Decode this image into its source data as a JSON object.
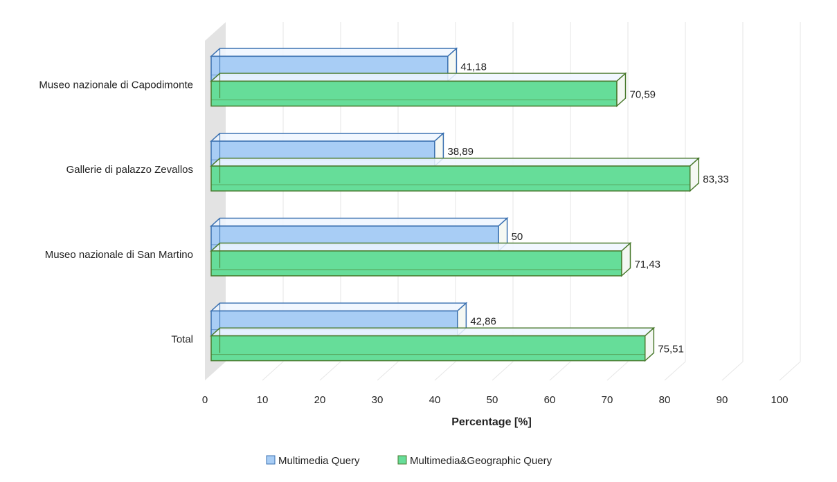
{
  "chart_data": {
    "type": "bar",
    "orientation": "horizontal",
    "style": "3d-clustered",
    "categories": [
      "Museo nazionale di Capodimonte",
      "Gallerie di palazzo Zevallos",
      "Museo nazionale di San Martino",
      "Total"
    ],
    "series": [
      {
        "name": "Multimedia Query",
        "color": "#a8cdf5",
        "edge": "#3a70b0",
        "values": [
          41.18,
          38.89,
          50,
          42.86
        ]
      },
      {
        "name": "Multimedia&Geographic Query",
        "color": "#66dd99",
        "edge": "#4a7a2e",
        "values": [
          70.59,
          83.33,
          71.43,
          75.51
        ]
      }
    ],
    "value_labels": [
      [
        "41,18",
        "38,89",
        "50",
        "42,86"
      ],
      [
        "70,59",
        "83,33",
        "71,43",
        "75,51"
      ]
    ],
    "xlabel": "Percentage [%]",
    "ylabel": "",
    "xlim": [
      0,
      100
    ],
    "xticks": [
      0,
      10,
      20,
      30,
      40,
      50,
      60,
      70,
      80,
      90,
      100
    ],
    "grid": true,
    "legend": "bottom"
  }
}
